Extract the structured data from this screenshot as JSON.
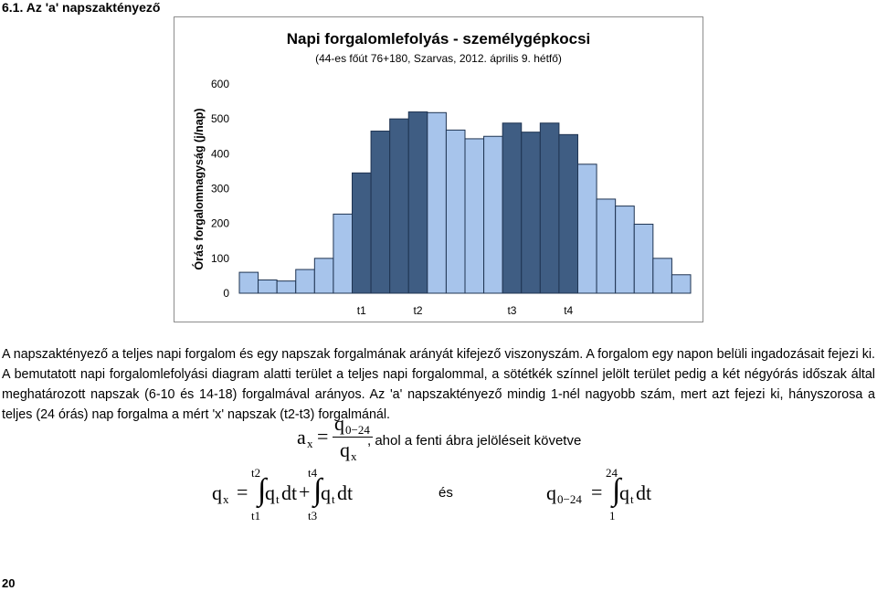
{
  "heading": "6.1.  Az 'a' napszaktényező",
  "chart_data": {
    "type": "bar",
    "title": "Napi forgalomlefolyás - személygépkocsi",
    "subtitle": "(44-es főút 76+180, Szarvas, 2012. április 9. hétfő)",
    "y_label": "Órás forgalomnagyság (j/nap)",
    "categories": [
      null,
      null,
      null,
      null,
      null,
      null,
      "t1",
      null,
      null,
      "t2",
      null,
      null,
      null,
      null,
      "t3",
      null,
      null,
      "t4",
      null,
      null,
      null,
      null,
      null,
      null
    ],
    "values": [
      60,
      38,
      35,
      68,
      100,
      227,
      345,
      465,
      500,
      520,
      518,
      468,
      443,
      450,
      488,
      462,
      488,
      455,
      370,
      270,
      250,
      198,
      100,
      53
    ],
    "colors": [
      "#a7c4eb",
      "#a7c4eb",
      "#a7c4eb",
      "#a7c4eb",
      "#a7c4eb",
      "#a7c4eb",
      "#3f5d83",
      "#3f5d83",
      "#3f5d83",
      "#3f5d83",
      "#a7c4eb",
      "#a7c4eb",
      "#a7c4eb",
      "#a7c4eb",
      "#3f5d83",
      "#3f5d83",
      "#3f5d83",
      "#3f5d83",
      "#a7c4eb",
      "#a7c4eb",
      "#a7c4eb",
      "#a7c4eb",
      "#a7c4eb",
      "#a7c4eb"
    ],
    "ylim": [
      0,
      600
    ],
    "yticks": [
      0,
      100,
      200,
      300,
      400,
      500,
      600
    ],
    "grid": false
  },
  "paragraph": "A napszaktényező a teljes napi forgalom és egy napszak forgalmának arányát kifejező viszonyszám. A forgalom egy napon belüli ingadozásait fejezi ki. A bemutatott napi forgalomlefolyási diagram alatti terület a teljes napi forgalommal, a sötétkék színnel jelölt terület pedig a két négyórás időszak által meghatározott napszak (6-10 és 14-18) forgalmával arányos. Az 'a' napszaktényező mindig 1-nél nagyobb szám, mert azt fejezi ki, hányszorosa a teljes (24 órás) nap forgalma a mért 'x' napszak (t2-t3) forgalmánál.",
  "formulas": {
    "ax": {
      "symbol": "a",
      "sub": "x",
      "eq": "=",
      "num": "q",
      "num_sub": "0−24",
      "den": "q",
      "den_sub": "x",
      "note": ", ahol a fenti ábra jelöléseit követve"
    },
    "qx": {
      "symbol": "q",
      "sub": "x",
      "eq": "=",
      "int1": {
        "sign": "∫",
        "upper": "t2",
        "lower": "t1",
        "integrand": "q",
        "sub": "t",
        "d": "dt"
      },
      "plus": "+",
      "int2": {
        "sign": "∫",
        "upper": "t4",
        "lower": "t3",
        "integrand": "q",
        "sub": "t",
        "d": "dt"
      }
    },
    "and": "és",
    "q024": {
      "symbol": "q",
      "sub": "0−24",
      "eq": "=",
      "int": {
        "sign": "∫",
        "upper": "24",
        "lower": "1",
        "integrand": "q",
        "sub": "t",
        "d": "dt"
      }
    }
  },
  "page_number": "20"
}
